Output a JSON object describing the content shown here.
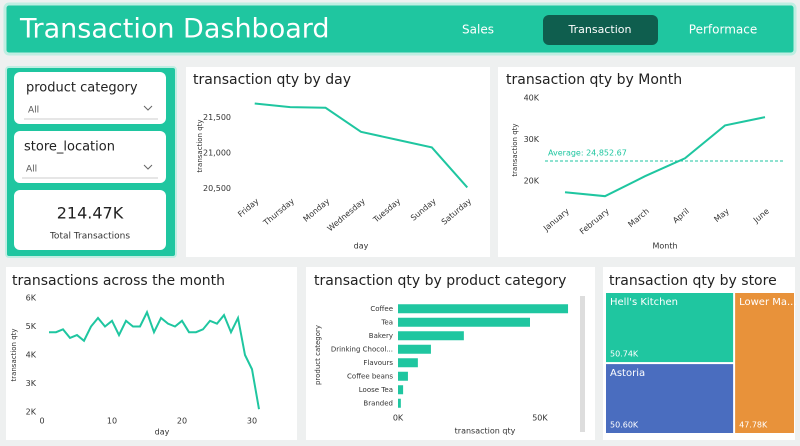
{
  "header": {
    "title": "Transaction Dashboard",
    "nav": [
      "Sales",
      "Transaction",
      "Performace"
    ]
  },
  "filters": [
    {
      "label": "product category",
      "value": "All"
    },
    {
      "label": "store_location",
      "value": "All"
    }
  ],
  "kpi": {
    "value": "214.47K",
    "label": "Total Transactions"
  },
  "chart_data": [
    {
      "type": "line",
      "title": "transaction qty by day",
      "x_label": "day",
      "y_label": "transaction qty",
      "color": "#1fc6a0",
      "categories": [
        "Friday",
        "Thursday",
        "Monday",
        "Wednesday",
        "Tuesday",
        "Sunday",
        "Saturday"
      ],
      "values": [
        21700,
        21650,
        21640,
        21300,
        21190,
        21080,
        20515
      ],
      "ylim": [
        20450,
        21750
      ],
      "yticks": [
        {
          "value": 20500,
          "label": "20,500"
        },
        {
          "value": 21000,
          "label": "21,000"
        },
        {
          "value": 21500,
          "label": "21,500"
        }
      ]
    },
    {
      "type": "line",
      "title": "transaction qty by Month",
      "x_label": "Month",
      "y_label": "transaction qty",
      "color": "#1fc6a0",
      "categories": [
        "January",
        "February",
        "March",
        "April",
        "May",
        "June"
      ],
      "values": [
        17350,
        16400,
        21200,
        25500,
        33400,
        35400
      ],
      "ylim": [
        15000,
        40000
      ],
      "yticks": [
        {
          "value": 20000,
          "label": "20K"
        },
        {
          "value": 30000,
          "label": "30K"
        },
        {
          "value": 40000,
          "label": "40K"
        }
      ],
      "average": {
        "value": 24852.67,
        "label": "Average: 24,852.67"
      }
    },
    {
      "type": "line",
      "title": "transactions across the month",
      "x_label": "day",
      "y_label": "transaction qty",
      "color": "#1fc6a0",
      "x": [
        1,
        2,
        3,
        4,
        5,
        6,
        7,
        8,
        9,
        10,
        11,
        12,
        13,
        14,
        15,
        16,
        17,
        18,
        19,
        20,
        21,
        22,
        23,
        24,
        25,
        26,
        27,
        28,
        29,
        30,
        31
      ],
      "values": [
        4800,
        4800,
        4900,
        4600,
        4700,
        4500,
        5000,
        5300,
        5000,
        5200,
        4700,
        5200,
        5000,
        5000,
        5500,
        4800,
        5300,
        5100,
        5000,
        5200,
        4800,
        4800,
        4900,
        5200,
        5100,
        5400,
        4800,
        5300,
        4000,
        3500,
        2100
      ],
      "xlim": [
        0,
        31
      ],
      "xticks": [
        0,
        10,
        20,
        30
      ],
      "ylim": [
        2000,
        6000
      ],
      "yticks": [
        {
          "value": 2000,
          "label": "2K"
        },
        {
          "value": 3000,
          "label": "3K"
        },
        {
          "value": 4000,
          "label": "4K"
        },
        {
          "value": 5000,
          "label": "5K"
        },
        {
          "value": 6000,
          "label": "6K"
        }
      ]
    },
    {
      "type": "hbar",
      "title": "transaction qty by product category",
      "x_label": "transaction qty",
      "y_label": "product category",
      "color": "#1fc6a0",
      "categories": [
        "Coffee",
        "Tea",
        "Bakery",
        "Drinking Chocol...",
        "Flavours",
        "Coffee beans",
        "Loose Tea",
        "Branded"
      ],
      "values": [
        59900,
        46500,
        23200,
        11600,
        7000,
        3500,
        1800,
        1000
      ],
      "xlim": [
        0,
        62000
      ],
      "xticks": [
        {
          "value": 0,
          "label": "0K"
        },
        {
          "value": 50000,
          "label": "50K"
        }
      ]
    },
    {
      "type": "treemap",
      "title": "transaction qty by store",
      "categories": [
        "Hell's Kitchen",
        "Astoria",
        "Lower Ma..."
      ],
      "values": [
        50740,
        50600,
        47780
      ],
      "value_labels": [
        "50.74K",
        "50.60K",
        "47.78K"
      ],
      "colors": [
        "#1fc6a0",
        "#4a6dbf",
        "#e8923a"
      ]
    }
  ]
}
